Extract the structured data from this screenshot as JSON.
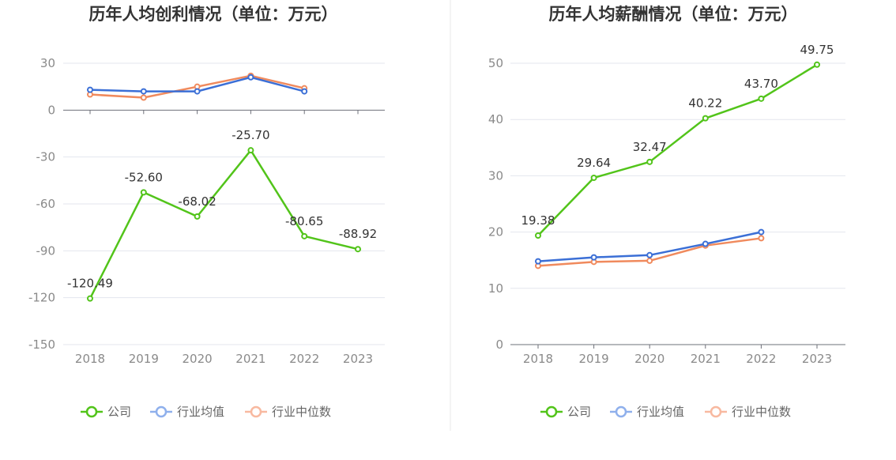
{
  "chart_data": [
    {
      "type": "line",
      "title": "历年人均创利情况（单位：万元）",
      "categories": [
        "2018",
        "2019",
        "2020",
        "2021",
        "2022",
        "2023"
      ],
      "ylim": [
        -150,
        30
      ],
      "yticks": [
        30,
        0,
        -30,
        -60,
        -90,
        -120,
        -150
      ],
      "grid": true,
      "legend_position": "bottom",
      "series": [
        {
          "name": "公司",
          "color": "#52c41a",
          "values": [
            -120.49,
            -52.6,
            -68.02,
            -25.7,
            -80.65,
            -88.92
          ],
          "labels": [
            "-120.49",
            "-52.60",
            "-68.02",
            "-25.70",
            "-80.65",
            "-88.92"
          ]
        },
        {
          "name": "行业均值",
          "color": "#3b6fd6",
          "values": [
            13,
            12,
            12,
            21,
            12,
            null
          ]
        },
        {
          "name": "行业中位数",
          "color": "#f08a5d",
          "values": [
            10,
            8,
            15,
            22,
            14,
            null
          ]
        }
      ]
    },
    {
      "type": "line",
      "title": "历年人均薪酬情况（单位：万元）",
      "categories": [
        "2018",
        "2019",
        "2020",
        "2021",
        "2022",
        "2023"
      ],
      "ylim": [
        0,
        50
      ],
      "yticks": [
        50,
        40,
        30,
        20,
        10,
        0
      ],
      "grid": true,
      "legend_position": "bottom",
      "series": [
        {
          "name": "公司",
          "color": "#52c41a",
          "values": [
            19.38,
            29.64,
            32.47,
            40.22,
            43.7,
            49.75
          ],
          "labels": [
            "19.38",
            "29.64",
            "32.47",
            "40.22",
            "43.70",
            "49.75"
          ]
        },
        {
          "name": "行业均值",
          "color": "#3b6fd6",
          "values": [
            14.8,
            15.5,
            15.9,
            17.9,
            20.0,
            null
          ]
        },
        {
          "name": "行业中位数",
          "color": "#f08a5d",
          "values": [
            14.0,
            14.7,
            14.9,
            17.6,
            18.9,
            null
          ]
        }
      ]
    }
  ],
  "legend_colors": {
    "公司": "#52c41a",
    "行业均值": "#8fb0ec",
    "行业中位数": "#f8b9a0"
  }
}
